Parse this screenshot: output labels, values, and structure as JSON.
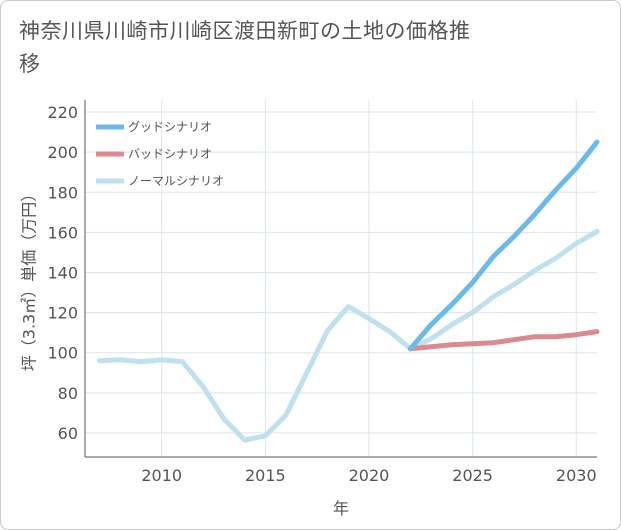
{
  "title": "神奈川県川崎市川崎区渡田新町の土地の価格推移",
  "chart_data": {
    "type": "line",
    "title": "神奈川県川崎市川崎区渡田新町の土地の価格推移",
    "xlabel": "年",
    "ylabel": "坪（3.3㎡）単価（万円）",
    "xlim": [
      2006.3,
      2031
    ],
    "ylim": [
      48,
      226
    ],
    "xticks": [
      2010,
      2015,
      2020,
      2025,
      2030
    ],
    "yticks": [
      60,
      80,
      100,
      120,
      140,
      160,
      180,
      200,
      220
    ],
    "grid": true,
    "legend_position": "top-left",
    "series": [
      {
        "name": "グッドシナリオ",
        "color": "#6cb9ec",
        "width": 5,
        "x": [
          2022,
          2023,
          2024,
          2025,
          2026,
          2027,
          2028,
          2029,
          2030,
          2031
        ],
        "y": [
          102,
          114,
          124,
          135,
          148,
          158,
          169,
          181,
          192,
          205
        ]
      },
      {
        "name": "バッドシナリオ",
        "color": "#db8a91",
        "width": 5,
        "x": [
          2022,
          2023,
          2024,
          2025,
          2026,
          2027,
          2028,
          2029,
          2030,
          2031
        ],
        "y": [
          102,
          103,
          104,
          104.5,
          105,
          106.5,
          108,
          108,
          109,
          110.5
        ]
      },
      {
        "name": "ノーマルシナリオ",
        "color": "#bfe0ef",
        "width": 5,
        "x": [
          2007,
          2008,
          2009,
          2010,
          2011,
          2012,
          2013,
          2014,
          2015,
          2016,
          2017,
          2018,
          2019,
          2020,
          2021,
          2022,
          2023,
          2024,
          2025,
          2026,
          2027,
          2028,
          2029,
          2030,
          2031
        ],
        "y": [
          96,
          96.5,
          95.5,
          96.5,
          95.5,
          83,
          67,
          56.5,
          58.5,
          69,
          90,
          111,
          123,
          117,
          110.5,
          102,
          107,
          114,
          120,
          128,
          134,
          141,
          147,
          154.5,
          160.5
        ]
      }
    ]
  }
}
